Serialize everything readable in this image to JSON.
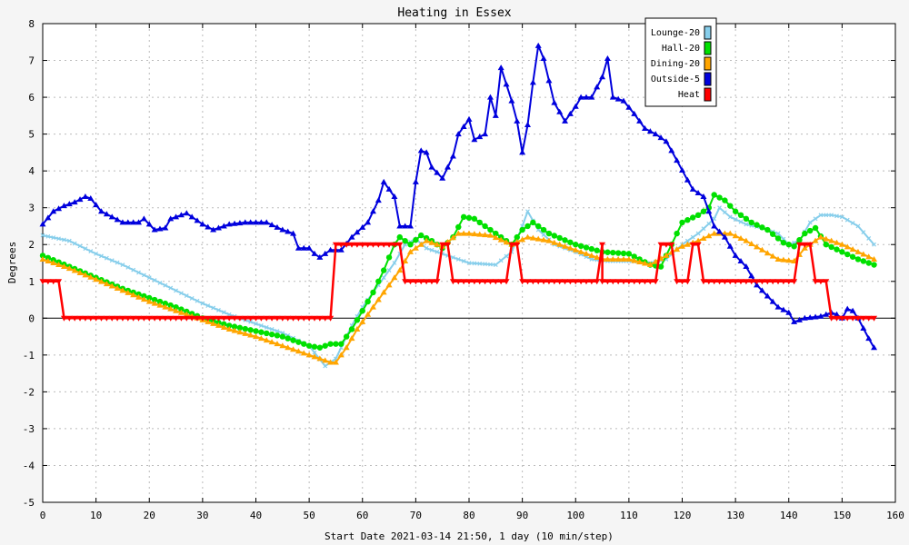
{
  "chart_data": {
    "type": "line",
    "title": "Heating in Essex",
    "xlabel": "Start Date 2021-03-14 21:50, 1 day (10 min/step)",
    "ylabel": "Degrees",
    "xlim": [
      0,
      160
    ],
    "ylim": [
      -5,
      8
    ],
    "x_ticks": [
      0,
      10,
      20,
      30,
      40,
      50,
      60,
      70,
      80,
      90,
      100,
      110,
      120,
      130,
      140,
      150,
      160
    ],
    "y_ticks": [
      -5,
      -4,
      -3,
      -2,
      -1,
      0,
      1,
      2,
      3,
      4,
      5,
      6,
      7,
      8
    ],
    "grid": true,
    "legend_position": "top-right",
    "colors": {
      "background": "#f5f5f5",
      "plot_background": "#ffffff",
      "grid": "#bbbbbb",
      "zero_line": "#000000"
    },
    "series": [
      {
        "name": "Lounge-20",
        "color": "#87ceeb",
        "marker": "x",
        "points": [
          [
            0,
            2.25
          ],
          [
            5,
            2.1
          ],
          [
            10,
            1.75
          ],
          [
            15,
            1.45
          ],
          [
            20,
            1.1
          ],
          [
            25,
            0.75
          ],
          [
            30,
            0.4
          ],
          [
            35,
            0.1
          ],
          [
            40,
            -0.15
          ],
          [
            45,
            -0.4
          ],
          [
            50,
            -0.75
          ],
          [
            53,
            -1.3
          ],
          [
            55,
            -1.1
          ],
          [
            58,
            -0.2
          ],
          [
            60,
            0.3
          ],
          [
            63,
            0.9
          ],
          [
            66,
            1.5
          ],
          [
            68,
            2.0
          ],
          [
            70,
            2.15
          ],
          [
            72,
            1.9
          ],
          [
            75,
            1.75
          ],
          [
            78,
            1.6
          ],
          [
            80,
            1.5
          ],
          [
            85,
            1.45
          ],
          [
            88,
            1.8
          ],
          [
            90,
            2.5
          ],
          [
            91,
            2.9
          ],
          [
            93,
            2.4
          ],
          [
            96,
            2.0
          ],
          [
            100,
            1.8
          ],
          [
            103,
            1.6
          ],
          [
            106,
            1.55
          ],
          [
            110,
            1.55
          ],
          [
            114,
            1.5
          ],
          [
            117,
            1.6
          ],
          [
            120,
            2.0
          ],
          [
            123,
            2.3
          ],
          [
            126,
            2.7
          ],
          [
            127,
            3.0
          ],
          [
            129,
            2.75
          ],
          [
            132,
            2.55
          ],
          [
            135,
            2.45
          ],
          [
            138,
            2.3
          ],
          [
            140,
            2.0
          ],
          [
            142,
            2.1
          ],
          [
            144,
            2.6
          ],
          [
            146,
            2.8
          ],
          [
            148,
            2.8
          ],
          [
            150,
            2.75
          ],
          [
            153,
            2.5
          ],
          [
            156,
            2.0
          ]
        ]
      },
      {
        "name": "Hall-20",
        "color": "#00e000",
        "marker": "circle",
        "points": [
          [
            0,
            1.7
          ],
          [
            5,
            1.4
          ],
          [
            10,
            1.1
          ],
          [
            15,
            0.8
          ],
          [
            20,
            0.55
          ],
          [
            25,
            0.3
          ],
          [
            30,
            0.0
          ],
          [
            35,
            -0.2
          ],
          [
            40,
            -0.35
          ],
          [
            45,
            -0.5
          ],
          [
            50,
            -0.75
          ],
          [
            52,
            -0.8
          ],
          [
            54,
            -0.7
          ],
          [
            56,
            -0.7
          ],
          [
            58,
            -0.3
          ],
          [
            60,
            0.2
          ],
          [
            62,
            0.7
          ],
          [
            64,
            1.3
          ],
          [
            66,
            2.0
          ],
          [
            67,
            2.2
          ],
          [
            69,
            2.0
          ],
          [
            71,
            2.25
          ],
          [
            73,
            2.1
          ],
          [
            75,
            1.9
          ],
          [
            77,
            2.2
          ],
          [
            79,
            2.75
          ],
          [
            81,
            2.7
          ],
          [
            85,
            2.3
          ],
          [
            88,
            2.0
          ],
          [
            90,
            2.4
          ],
          [
            92,
            2.6
          ],
          [
            95,
            2.3
          ],
          [
            100,
            2.0
          ],
          [
            105,
            1.8
          ],
          [
            110,
            1.75
          ],
          [
            114,
            1.45
          ],
          [
            116,
            1.4
          ],
          [
            118,
            2.0
          ],
          [
            120,
            2.6
          ],
          [
            123,
            2.8
          ],
          [
            125,
            3.0
          ],
          [
            126,
            3.35
          ],
          [
            128,
            3.2
          ],
          [
            130,
            2.9
          ],
          [
            133,
            2.6
          ],
          [
            136,
            2.4
          ],
          [
            139,
            2.05
          ],
          [
            141,
            1.95
          ],
          [
            143,
            2.3
          ],
          [
            145,
            2.45
          ],
          [
            147,
            2.0
          ],
          [
            150,
            1.8
          ],
          [
            153,
            1.6
          ],
          [
            156,
            1.45
          ]
        ]
      },
      {
        "name": "Dining-20",
        "color": "#ffa500",
        "marker": "triangle",
        "points": [
          [
            0,
            1.6
          ],
          [
            5,
            1.35
          ],
          [
            10,
            1.05
          ],
          [
            15,
            0.75
          ],
          [
            20,
            0.45
          ],
          [
            25,
            0.2
          ],
          [
            30,
            -0.05
          ],
          [
            35,
            -0.3
          ],
          [
            40,
            -0.5
          ],
          [
            45,
            -0.75
          ],
          [
            50,
            -1.0
          ],
          [
            54,
            -1.2
          ],
          [
            55,
            -1.2
          ],
          [
            57,
            -0.8
          ],
          [
            59,
            -0.3
          ],
          [
            61,
            0.1
          ],
          [
            63,
            0.5
          ],
          [
            65,
            0.9
          ],
          [
            67,
            1.3
          ],
          [
            69,
            1.8
          ],
          [
            72,
            2.1
          ],
          [
            75,
            1.95
          ],
          [
            78,
            2.3
          ],
          [
            80,
            2.3
          ],
          [
            84,
            2.25
          ],
          [
            88,
            2.0
          ],
          [
            91,
            2.2
          ],
          [
            95,
            2.1
          ],
          [
            100,
            1.85
          ],
          [
            105,
            1.6
          ],
          [
            110,
            1.6
          ],
          [
            114,
            1.45
          ],
          [
            117,
            1.7
          ],
          [
            120,
            1.95
          ],
          [
            123,
            2.1
          ],
          [
            126,
            2.3
          ],
          [
            129,
            2.3
          ],
          [
            132,
            2.1
          ],
          [
            135,
            1.85
          ],
          [
            138,
            1.6
          ],
          [
            141,
            1.55
          ],
          [
            143,
            1.9
          ],
          [
            146,
            2.2
          ],
          [
            150,
            2.0
          ],
          [
            153,
            1.8
          ],
          [
            156,
            1.6
          ]
        ]
      },
      {
        "name": "Outside-5",
        "color": "#0000dd",
        "marker": "triangle",
        "points": [
          [
            0,
            2.55
          ],
          [
            2,
            2.9
          ],
          [
            4,
            3.05
          ],
          [
            6,
            3.15
          ],
          [
            8,
            3.3
          ],
          [
            9,
            3.25
          ],
          [
            11,
            2.9
          ],
          [
            13,
            2.75
          ],
          [
            15,
            2.6
          ],
          [
            18,
            2.6
          ],
          [
            19,
            2.7
          ],
          [
            21,
            2.4
          ],
          [
            23,
            2.45
          ],
          [
            24,
            2.7
          ],
          [
            27,
            2.85
          ],
          [
            28,
            2.75
          ],
          [
            30,
            2.55
          ],
          [
            32,
            2.4
          ],
          [
            35,
            2.55
          ],
          [
            38,
            2.6
          ],
          [
            42,
            2.6
          ],
          [
            45,
            2.4
          ],
          [
            47,
            2.3
          ],
          [
            48,
            1.9
          ],
          [
            50,
            1.9
          ],
          [
            51,
            1.75
          ],
          [
            52,
            1.65
          ],
          [
            54,
            1.85
          ],
          [
            56,
            1.85
          ],
          [
            58,
            2.2
          ],
          [
            61,
            2.6
          ],
          [
            63,
            3.2
          ],
          [
            64,
            3.7
          ],
          [
            66,
            3.3
          ],
          [
            67,
            2.5
          ],
          [
            69,
            2.5
          ],
          [
            70,
            3.7
          ],
          [
            71,
            4.55
          ],
          [
            72,
            4.5
          ],
          [
            73,
            4.1
          ],
          [
            75,
            3.8
          ],
          [
            77,
            4.4
          ],
          [
            78,
            5.0
          ],
          [
            80,
            5.4
          ],
          [
            81,
            4.85
          ],
          [
            83,
            5.0
          ],
          [
            84,
            6.0
          ],
          [
            85,
            5.5
          ],
          [
            86,
            6.8
          ],
          [
            88,
            5.9
          ],
          [
            89,
            5.35
          ],
          [
            90,
            4.5
          ],
          [
            91,
            5.25
          ],
          [
            92,
            6.4
          ],
          [
            93,
            7.4
          ],
          [
            94,
            7.05
          ],
          [
            96,
            5.85
          ],
          [
            98,
            5.35
          ],
          [
            100,
            5.75
          ],
          [
            101,
            6.0
          ],
          [
            103,
            6.0
          ],
          [
            105,
            6.55
          ],
          [
            106,
            7.05
          ],
          [
            107,
            6.0
          ],
          [
            109,
            5.9
          ],
          [
            111,
            5.55
          ],
          [
            113,
            5.15
          ],
          [
            115,
            5.0
          ],
          [
            117,
            4.8
          ],
          [
            118,
            4.55
          ],
          [
            121,
            3.75
          ],
          [
            122,
            3.5
          ],
          [
            124,
            3.3
          ],
          [
            126,
            2.5
          ],
          [
            128,
            2.2
          ],
          [
            130,
            1.7
          ],
          [
            132,
            1.4
          ],
          [
            134,
            0.9
          ],
          [
            136,
            0.6
          ],
          [
            138,
            0.3
          ],
          [
            140,
            0.15
          ],
          [
            141,
            -0.1
          ],
          [
            143,
            0.0
          ],
          [
            146,
            0.05
          ],
          [
            148,
            0.15
          ],
          [
            149,
            0.1
          ],
          [
            150,
            0.0
          ],
          [
            151,
            0.25
          ],
          [
            152,
            0.2
          ],
          [
            153,
            0.0
          ],
          [
            155,
            -0.55
          ],
          [
            156,
            -0.8
          ]
        ]
      },
      {
        "name": "Heat",
        "color": "#ff0000",
        "marker": "triangle-down",
        "points": [
          [
            0,
            1
          ],
          [
            3,
            1
          ],
          [
            4,
            0
          ],
          [
            54,
            0
          ],
          [
            55,
            2
          ],
          [
            67,
            2
          ],
          [
            68,
            1
          ],
          [
            74,
            1
          ],
          [
            75,
            2
          ],
          [
            76,
            2
          ],
          [
            77,
            1
          ],
          [
            87,
            1
          ],
          [
            88,
            2
          ],
          [
            89,
            2
          ],
          [
            90,
            1
          ],
          [
            104,
            1
          ],
          [
            105,
            2
          ],
          [
            105,
            1
          ],
          [
            115,
            1
          ],
          [
            116,
            2
          ],
          [
            118,
            2
          ],
          [
            119,
            1
          ],
          [
            121,
            1
          ],
          [
            122,
            2
          ],
          [
            123,
            2
          ],
          [
            124,
            1
          ],
          [
            141,
            1
          ],
          [
            142,
            2
          ],
          [
            144,
            2
          ],
          [
            145,
            1
          ],
          [
            147,
            1
          ],
          [
            148,
            0
          ],
          [
            156,
            0
          ]
        ]
      }
    ]
  }
}
